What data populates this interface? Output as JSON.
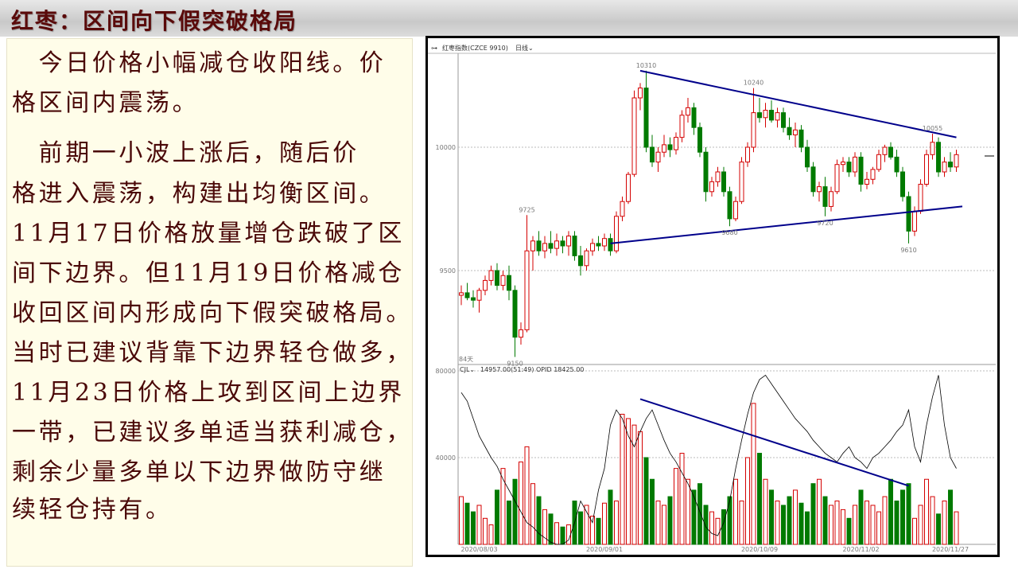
{
  "slide": {
    "title": "红枣：区间向下假突破格局",
    "lines": [
      "　今日价格小幅减仓收阳线。价",
      "格区间内震荡。",
      "　前期一小波上涨后，随后价",
      "格进入震荡，构建出均衡区间。",
      "11月17日价格放量增仓跌破了区",
      "间下边界。但11月19日价格减仓",
      "收回区间内形成向下假突破格局。",
      "当时已建议背靠下边界轻仓做多，",
      "11月23日价格上攻到区间上边界",
      "一带，已建议多单适当获利减仓，",
      "剩余少量多单以下边界做防守继",
      "续轻仓持有。"
    ]
  },
  "chart_data": {
    "type": "candlestick",
    "header": {
      "symbol": "红枣指数(CZCE 9910)",
      "period": "日线",
      "icon": "link-icon"
    },
    "days_label": "84天",
    "colors": {
      "up": "#d40000",
      "down": "#007a00",
      "trend": "#00008b",
      "oi": "#000000"
    },
    "price_axis": {
      "ticks": [
        10000,
        9500
      ]
    },
    "volume_axis": {
      "ticks": [
        80000,
        40000
      ]
    },
    "x_ticks": [
      {
        "bar": 3,
        "label": "2020/08/03"
      },
      {
        "bar": 24,
        "label": "2020/09/01"
      },
      {
        "bar": 50,
        "label": "2020/10/09"
      },
      {
        "bar": 67,
        "label": "2020/11/02"
      },
      {
        "bar": 82,
        "label": "2020/11/27"
      }
    ],
    "volume_header": {
      "indicator": "CJL",
      "values": "14957.00(51:49)  OPID 18425.00"
    },
    "annotations": [
      {
        "bar": 31,
        "price": 10310,
        "label": "10310",
        "kind": "high"
      },
      {
        "bar": 49,
        "price": 10240,
        "label": "10240",
        "kind": "high"
      },
      {
        "bar": 79,
        "price": 10055,
        "label": "10055",
        "kind": "high"
      },
      {
        "bar": 11,
        "price": 9725,
        "label": "9725",
        "kind": "high"
      },
      {
        "bar": 45,
        "price": 9680,
        "label": "9680",
        "kind": "low"
      },
      {
        "bar": 61,
        "price": 9720,
        "label": "9720",
        "kind": "low"
      },
      {
        "bar": 75,
        "price": 9610,
        "label": "9610",
        "kind": "low"
      },
      {
        "bar": 9,
        "price": 9150,
        "label": "9150",
        "kind": "low"
      }
    ],
    "trendlines": [
      {
        "pane": "price",
        "from": [
          30,
          10310
        ],
        "to": [
          83,
          10040
        ]
      },
      {
        "pane": "price",
        "from": [
          25,
          9610
        ],
        "to": [
          84,
          9760
        ]
      },
      {
        "pane": "volume",
        "from": [
          30,
          67000
        ],
        "to": [
          75,
          27000
        ]
      }
    ],
    "ohlc": [
      [
        9400,
        9440,
        9360,
        9410
      ],
      [
        9410,
        9450,
        9380,
        9390
      ],
      [
        9390,
        9420,
        9350,
        9380
      ],
      [
        9380,
        9430,
        9330,
        9420
      ],
      [
        9420,
        9480,
        9400,
        9460
      ],
      [
        9460,
        9520,
        9440,
        9500
      ],
      [
        9500,
        9530,
        9420,
        9440
      ],
      [
        9440,
        9500,
        9420,
        9480
      ],
      [
        9480,
        9520,
        9380,
        9420
      ],
      [
        9420,
        9440,
        9150,
        9230
      ],
      [
        9230,
        9290,
        9200,
        9260
      ],
      [
        9260,
        9725,
        9250,
        9580
      ],
      [
        9580,
        9640,
        9500,
        9620
      ],
      [
        9620,
        9660,
        9560,
        9580
      ],
      [
        9580,
        9640,
        9550,
        9610
      ],
      [
        9610,
        9660,
        9570,
        9590
      ],
      [
        9590,
        9650,
        9560,
        9620
      ],
      [
        9620,
        9640,
        9570,
        9600
      ],
      [
        9600,
        9660,
        9560,
        9640
      ],
      [
        9640,
        9660,
        9540,
        9560
      ],
      [
        9560,
        9600,
        9480,
        9520
      ],
      [
        9520,
        9590,
        9500,
        9580
      ],
      [
        9580,
        9630,
        9560,
        9610
      ],
      [
        9610,
        9640,
        9580,
        9600
      ],
      [
        9600,
        9650,
        9580,
        9630
      ],
      [
        9630,
        9650,
        9560,
        9580
      ],
      [
        9580,
        9740,
        9570,
        9720
      ],
      [
        9720,
        9800,
        9700,
        9780
      ],
      [
        9780,
        9900,
        9770,
        9890
      ],
      [
        9890,
        10230,
        9880,
        10200
      ],
      [
        10200,
        10260,
        10150,
        10240
      ],
      [
        10240,
        10310,
        9980,
        10000
      ],
      [
        10000,
        10050,
        9920,
        9940
      ],
      [
        9940,
        10000,
        9900,
        9980
      ],
      [
        9980,
        10050,
        9960,
        10010
      ],
      [
        10010,
        10040,
        9960,
        9990
      ],
      [
        9990,
        10060,
        9970,
        10040
      ],
      [
        10040,
        10150,
        10020,
        10130
      ],
      [
        10130,
        10200,
        10100,
        10160
      ],
      [
        10160,
        10180,
        10050,
        10080
      ],
      [
        10080,
        10100,
        9960,
        9980
      ],
      [
        9980,
        10000,
        9780,
        9820
      ],
      [
        9820,
        9880,
        9800,
        9860
      ],
      [
        9860,
        9920,
        9840,
        9900
      ],
      [
        9900,
        9920,
        9800,
        9820
      ],
      [
        9820,
        9840,
        9680,
        9710
      ],
      [
        9710,
        9800,
        9700,
        9780
      ],
      [
        9780,
        9960,
        9770,
        9940
      ],
      [
        9940,
        10020,
        9920,
        10000
      ],
      [
        10000,
        10240,
        9980,
        10140
      ],
      [
        10140,
        10200,
        10100,
        10120
      ],
      [
        10120,
        10180,
        10080,
        10150
      ],
      [
        10150,
        10190,
        10100,
        10110
      ],
      [
        10110,
        10160,
        10080,
        10140
      ],
      [
        10140,
        10160,
        10060,
        10080
      ],
      [
        10080,
        10120,
        10030,
        10050
      ],
      [
        10050,
        10100,
        10000,
        10070
      ],
      [
        10070,
        10090,
        9980,
        10000
      ],
      [
        10000,
        10030,
        9900,
        9920
      ],
      [
        9920,
        9940,
        9800,
        9820
      ],
      [
        9820,
        9860,
        9780,
        9840
      ],
      [
        9840,
        9880,
        9720,
        9760
      ],
      [
        9760,
        9840,
        9740,
        9820
      ],
      [
        9820,
        9950,
        9810,
        9930
      ],
      [
        9930,
        9960,
        9900,
        9940
      ],
      [
        9940,
        9960,
        9880,
        9900
      ],
      [
        9900,
        9980,
        9880,
        9960
      ],
      [
        9960,
        9980,
        9820,
        9850
      ],
      [
        9850,
        9900,
        9830,
        9870
      ],
      [
        9870,
        9920,
        9850,
        9910
      ],
      [
        9910,
        9990,
        9900,
        9970
      ],
      [
        9970,
        10010,
        9940,
        10000
      ],
      [
        10000,
        10020,
        9950,
        9960
      ],
      [
        9960,
        9990,
        9880,
        9900
      ],
      [
        9900,
        9920,
        9780,
        9800
      ],
      [
        9800,
        9820,
        9610,
        9660
      ],
      [
        9660,
        9760,
        9640,
        9740
      ],
      [
        9740,
        9870,
        9730,
        9850
      ],
      [
        9850,
        9990,
        9840,
        9970
      ],
      [
        9970,
        10055,
        9950,
        10020
      ],
      [
        10020,
        10040,
        9880,
        9900
      ],
      [
        9900,
        9960,
        9880,
        9940
      ],
      [
        9940,
        9980,
        9900,
        9920
      ],
      [
        9920,
        9990,
        9900,
        9970
      ]
    ],
    "volume": [
      22000,
      19000,
      15000,
      18000,
      12000,
      9000,
      25000,
      35000,
      20000,
      30000,
      38000,
      45000,
      28000,
      22000,
      16000,
      14000,
      10000,
      8000,
      9000,
      20000,
      15000,
      18000,
      13000,
      12000,
      19000,
      25000,
      20000,
      60000,
      58000,
      55000,
      52000,
      40000,
      30000,
      20000,
      18000,
      22000,
      35000,
      42000,
      30000,
      25000,
      28000,
      18000,
      15000,
      12000,
      16000,
      22000,
      30000,
      20000,
      40000,
      65000,
      42000,
      30000,
      25000,
      20000,
      18000,
      22000,
      25000,
      19000,
      15000,
      28000,
      30000,
      22000,
      18000,
      20000,
      16000,
      12000,
      18000,
      25000,
      20000,
      18000,
      15000,
      22000,
      30000,
      20000,
      25000,
      28000,
      12000,
      18000,
      30000,
      22000,
      14000,
      20000,
      25000,
      15000
    ],
    "open_interest": [
      70000,
      66000,
      58000,
      50000,
      45000,
      40000,
      36000,
      30000,
      25000,
      20000,
      15000,
      10000,
      8000,
      5000,
      3000,
      1000,
      0,
      0,
      2000,
      10000,
      20000,
      15000,
      10000,
      25000,
      35000,
      55000,
      62000,
      58000,
      50000,
      45000,
      52000,
      58000,
      62000,
      55000,
      48000,
      42000,
      38000,
      33000,
      28000,
      22000,
      15000,
      8000,
      5000,
      4000,
      10000,
      20000,
      35000,
      48000,
      60000,
      70000,
      76000,
      78000,
      74000,
      70000,
      66000,
      62000,
      58000,
      55000,
      52000,
      48000,
      45000,
      42000,
      40000,
      38000,
      42000,
      45000,
      40000,
      38000,
      35000,
      40000,
      42000,
      45000,
      48000,
      52000,
      55000,
      62000,
      45000,
      38000,
      55000,
      68000,
      78000,
      55000,
      40000,
      35000
    ]
  }
}
